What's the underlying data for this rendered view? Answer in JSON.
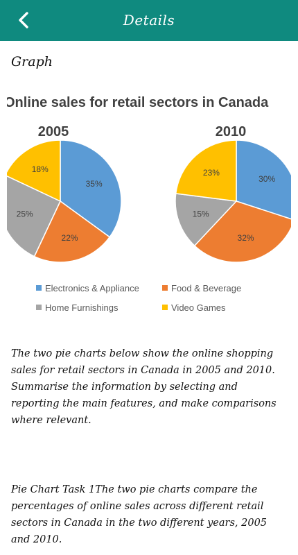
{
  "header": {
    "title": "Details",
    "back_icon": "chevron-left-icon"
  },
  "section_heading": "Graph",
  "colors": {
    "appbar": "#0f8a7f",
    "electronics": "#5b9bd5",
    "food": "#ed7d31",
    "home": "#a5a5a5",
    "games": "#ffc000"
  },
  "chart_data": {
    "type": "pie",
    "title": "Online sales for retail sectors in Canada",
    "legend": [
      "Electronics & Appliance",
      "Food & Beverage",
      "Home Furnishings",
      "Video Games"
    ],
    "legend_placement": "bottom",
    "pies": [
      {
        "title": "2005",
        "slices": [
          {
            "name": "Electronics & Appliance",
            "value": 35,
            "label": "35%"
          },
          {
            "name": "Food & Beverage",
            "value": 22,
            "label": "22%"
          },
          {
            "name": "Home Furnishings",
            "value": 25,
            "label": "25%"
          },
          {
            "name": "Video Games",
            "value": 18,
            "label": "18%"
          }
        ]
      },
      {
        "title": "2010",
        "slices": [
          {
            "name": "Electronics & Appliance",
            "value": 30,
            "label": "30%"
          },
          {
            "name": "Food & Beverage",
            "value": 32,
            "label": "32%"
          },
          {
            "name": "Home Furnishings",
            "value": 15,
            "label": "15%"
          },
          {
            "name": "Video Games",
            "value": 23,
            "label": "23%"
          }
        ]
      }
    ]
  },
  "description": {
    "prompt": "The two pie charts below show the online shopping sales for retail sectors in Canada in 2005 and 2010. Summarise the information by selecting and reporting the main features, and make comparisons where relevant.",
    "answer_intro": "Pie Chart Task 1The two pie charts compare the percentages of online sales across different retail sectors in Canada in the two different years, 2005 and 2010."
  }
}
